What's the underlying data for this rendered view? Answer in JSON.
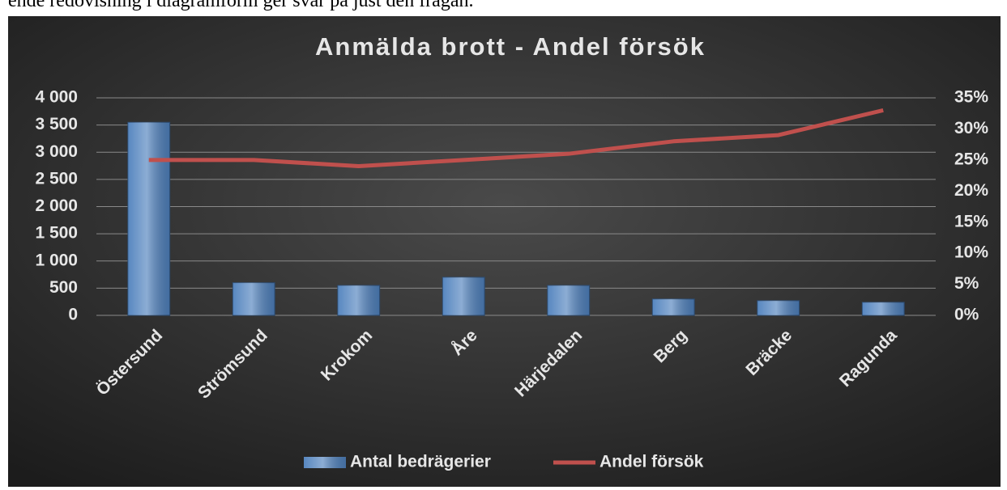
{
  "page_text": "ende redovisning i diagramform ger svar på just den frågan.",
  "chart_data": {
    "type": "bar_line",
    "title": "Anmälda brott - Andel försök",
    "categories": [
      "Östersund",
      "Strömsund",
      "Krokom",
      "Åre",
      "Härjedalen",
      "Berg",
      "Bräcke",
      "Ragunda"
    ],
    "series": [
      {
        "name": "Antal bedrägerier",
        "type": "bar",
        "color": "#4f81bd",
        "values": [
          3550,
          600,
          550,
          700,
          550,
          300,
          270,
          240
        ]
      },
      {
        "name": "Andel försök",
        "type": "line",
        "axis": "y2",
        "color": "#c0504d",
        "values": [
          25,
          25,
          24,
          25,
          26,
          28,
          29,
          33
        ]
      }
    ],
    "ylim": [
      0,
      4000
    ],
    "yticks": [
      0,
      500,
      {
        "value": 1000,
        "label": "1 000"
      },
      {
        "value": 1500,
        "label": "1 500"
      },
      {
        "value": 2000,
        "label": "2 000"
      },
      {
        "value": 2500,
        "label": "2 500"
      },
      {
        "value": 3000,
        "label": "3 000"
      },
      {
        "value": 3500,
        "label": "3 500"
      },
      {
        "value": 4000,
        "label": "4 000"
      }
    ],
    "y2lim": [
      0,
      35
    ],
    "y2ticks": [
      {
        "value": 0,
        "label": "0%"
      },
      {
        "value": 5,
        "label": "5%"
      },
      {
        "value": 10,
        "label": "10%"
      },
      {
        "value": 15,
        "label": "15%"
      },
      {
        "value": 20,
        "label": "20%"
      },
      {
        "value": 25,
        "label": "25%"
      },
      {
        "value": 30,
        "label": "30%"
      },
      {
        "value": 35,
        "label": "35%"
      }
    ],
    "grid": true,
    "legend": "bottom"
  }
}
